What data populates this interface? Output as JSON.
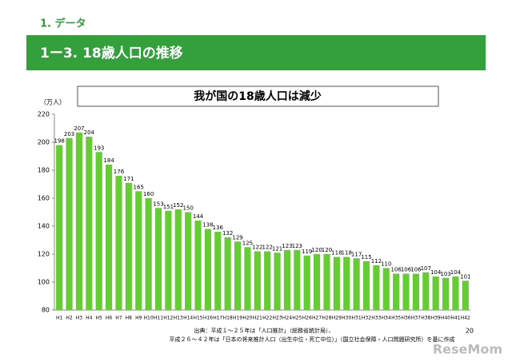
{
  "header": {
    "section": "1. データ",
    "subtitle": "1ー3. 18歳人口の推移"
  },
  "chart_data": {
    "type": "bar",
    "title": "我が国の18歳人口は減少",
    "y_label": "（万人）",
    "categories": [
      "H1",
      "H2",
      "H3",
      "H4",
      "H5",
      "H6",
      "H7",
      "H8",
      "H9",
      "H10",
      "H11",
      "H12",
      "H13",
      "H14",
      "H15",
      "H16",
      "H17",
      "H18",
      "H19",
      "H20",
      "H21",
      "H22",
      "H23",
      "H24",
      "H25",
      "H26",
      "H27",
      "H28",
      "H29",
      "H30",
      "H31",
      "H32",
      "H33",
      "H34",
      "H35",
      "H36",
      "H37",
      "H38",
      "H39",
      "H40",
      "H41",
      "H42"
    ],
    "values": [
      198,
      203,
      207,
      204,
      193,
      184,
      176,
      171,
      165,
      160,
      153,
      151,
      152,
      150,
      144,
      138,
      136,
      132,
      129,
      125,
      122,
      122,
      121,
      123,
      123,
      119,
      120,
      120,
      118,
      118,
      117,
      115,
      112,
      110,
      106,
      106,
      106,
      107,
      104,
      103,
      104,
      101
    ],
    "color": "#66cc33",
    "ylim": [
      80,
      220
    ],
    "yticks": [
      80,
      100,
      120,
      140,
      160,
      180,
      200,
      220
    ],
    "grid": false
  },
  "footer": {
    "source": [
      "出典：平成１～２５年は「人口推計」（総務省統計局）、",
      "平成２６～４２年は「日本の将来推計人口（出生中位・死亡中位）」（国立社会保障・人口問題研究所）を基に作成"
    ],
    "page": "20",
    "watermark": "ReseMom"
  }
}
